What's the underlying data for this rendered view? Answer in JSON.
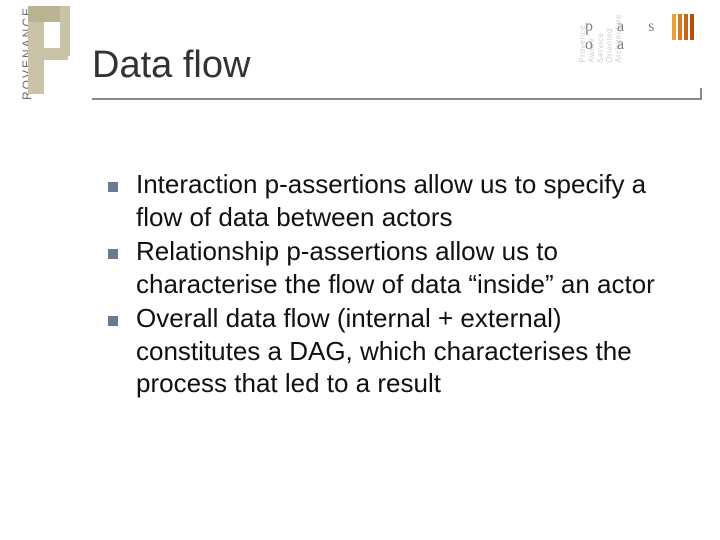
{
  "left_logo": {
    "vertical_text": "ROVENANCE",
    "text_color": "#6d6d6d",
    "shape_colors": {
      "light": "#c9c4a8",
      "dark": "#b8b390"
    }
  },
  "pasoa_logo": {
    "bg_words": [
      "Provence",
      "Aware",
      "Service",
      "Oriented",
      "Architecture"
    ],
    "bg_word_color": "#cfcfcf",
    "stripe_colors": [
      "#e8a03a",
      "#d97a1f",
      "#c86414",
      "#b74e0a"
    ],
    "text": "p a s o a",
    "text_color": "#7a838e"
  },
  "title": {
    "text": "Data flow",
    "color": "#333333",
    "fontsize": 38,
    "underline_color": "#888888"
  },
  "bullets": {
    "marker_color": "#6a7b8f",
    "text_color": "#111111",
    "fontsize": 26,
    "items": [
      "Interaction p-assertions allow us to specify a flow of data between actors",
      "Relationship p-assertions allow us to characterise the flow of data “inside” an actor",
      "Overall data flow (internal + external) constitutes a DAG, which characterises the process that led to a result"
    ]
  },
  "background_color": "#ffffff"
}
